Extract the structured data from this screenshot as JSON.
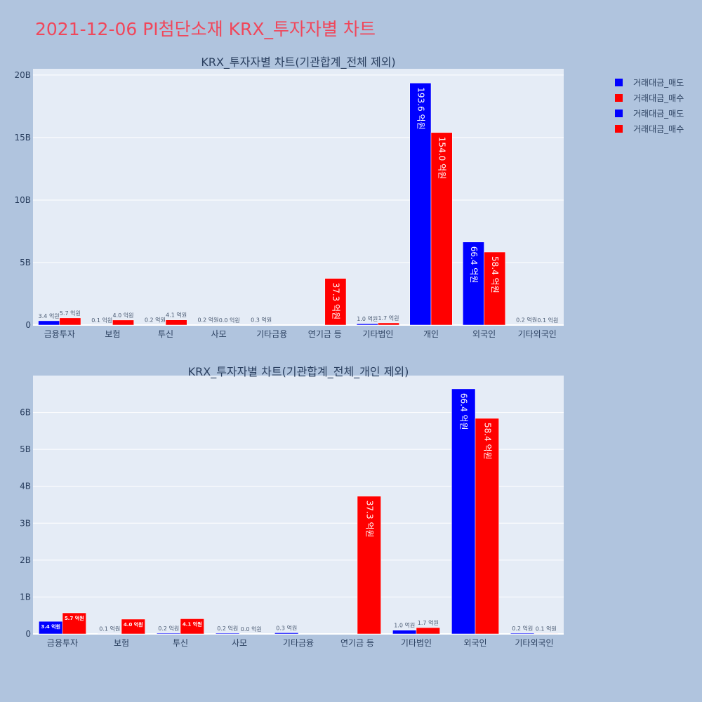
{
  "title": "2021-12-06 PI첨단소재 KRX_투자자별 차트",
  "colors": {
    "sell": "#0000ff",
    "buy": "#ff0000",
    "plot_bg": "#e5ecf6",
    "page_bg": "#b0c4de",
    "title": "#f0475b"
  },
  "legend": [
    {
      "label": "거래대금_매도",
      "color": "#0000ff"
    },
    {
      "label": "거래대금_매수",
      "color": "#ff0000"
    },
    {
      "label": "거래대금_매도",
      "color": "#0000ff"
    },
    {
      "label": "거래대금_매수",
      "color": "#ff0000"
    }
  ],
  "chart_data": [
    {
      "type": "bar",
      "title": "KRX_투자자별 차트(기관합계_전체 제외)",
      "categories": [
        "금융투자",
        "보험",
        "투신",
        "사모",
        "기타금융",
        "연기금 등",
        "기타법인",
        "개인",
        "외국인",
        "기타외국인"
      ],
      "series": [
        {
          "name": "거래대금_매도",
          "color": "#0000ff",
          "values": [
            340000000,
            10000000,
            20000000,
            20000000,
            30000000,
            0,
            100000000,
            19360000000,
            6640000000,
            20000000
          ],
          "labels": [
            "3.4 억원",
            "0.1 억원",
            "0.2 억원",
            "0.2 억원",
            "0.3 억원",
            "",
            "1.0 억원",
            "193.6 억원",
            "66.4 억원",
            "0.2 억원"
          ]
        },
        {
          "name": "거래대금_매수",
          "color": "#ff0000",
          "values": [
            570000000,
            400000000,
            410000000,
            0,
            0,
            3730000000,
            170000000,
            15400000000,
            5840000000,
            10000000
          ],
          "labels": [
            "5.7 억원",
            "4.0 억원",
            "4.1 억원",
            "0.0 억원",
            "",
            "37.3 억원",
            "1.7 억원",
            "154.0 억원",
            "58.4 억원",
            "0.1 억원"
          ]
        }
      ],
      "ylim": [
        0,
        20500000000
      ],
      "yticks": [
        0,
        5000000000,
        10000000000,
        15000000000,
        20000000000
      ],
      "yticklabels": [
        "0",
        "5B",
        "10B",
        "15B",
        "20B"
      ],
      "grid": true
    },
    {
      "type": "bar",
      "title": "KRX_투자자별 차트(기관합계_전체_개인 제외)",
      "categories": [
        "금융투자",
        "보험",
        "투신",
        "사모",
        "기타금융",
        "연기금 등",
        "기타법인",
        "외국인",
        "기타외국인"
      ],
      "series": [
        {
          "name": "거래대금_매도",
          "color": "#0000ff",
          "values": [
            340000000,
            10000000,
            20000000,
            20000000,
            30000000,
            0,
            100000000,
            6640000000,
            20000000
          ],
          "labels": [
            "3.4 억원",
            "0.1 억원",
            "0.2 억원",
            "0.2 억원",
            "0.3 억원",
            "",
            "1.0 억원",
            "66.4 억원",
            "0.2 억원"
          ]
        },
        {
          "name": "거래대금_매수",
          "color": "#ff0000",
          "values": [
            570000000,
            400000000,
            410000000,
            0,
            0,
            3730000000,
            170000000,
            5840000000,
            10000000
          ],
          "labels": [
            "5.7 억원",
            "4.0 억원",
            "4.1 억원",
            "0.0 억원",
            "",
            "37.3 억원",
            "1.7 억원",
            "58.4 억원",
            "0.1 억원"
          ]
        }
      ],
      "ylim": [
        0,
        7000000000
      ],
      "yticks": [
        0,
        1000000000,
        2000000000,
        3000000000,
        4000000000,
        5000000000,
        6000000000
      ],
      "yticklabels": [
        "0",
        "1B",
        "2B",
        "3B",
        "4B",
        "5B",
        "6B"
      ],
      "grid": true
    }
  ]
}
